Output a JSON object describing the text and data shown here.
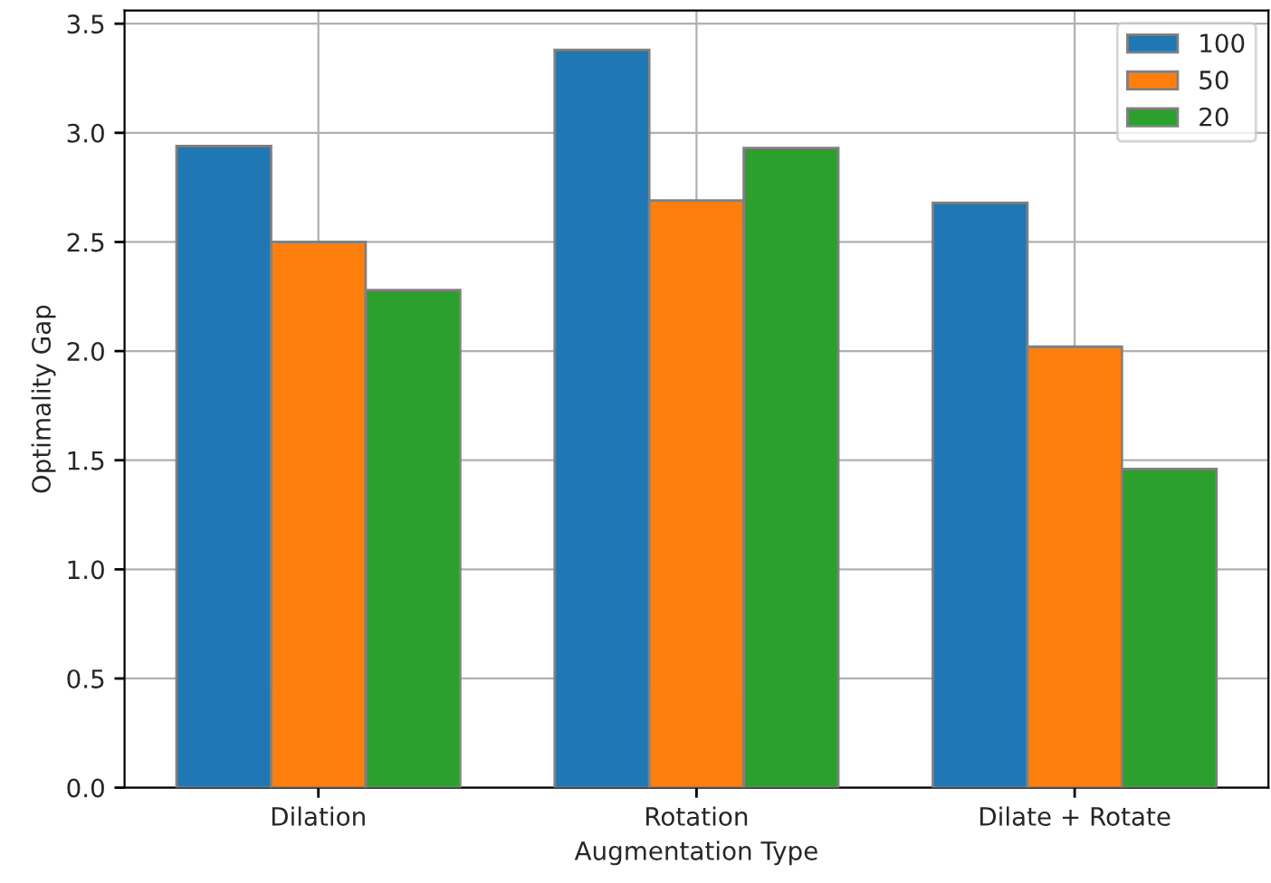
{
  "chart_data": {
    "type": "bar",
    "xlabel": "Augmentation Type",
    "ylabel": "Optimality Gap",
    "categories": [
      "Dilation",
      "Rotation",
      "Dilate + Rotate"
    ],
    "series": [
      {
        "name": "100",
        "color": "#1f77b4",
        "values": [
          2.94,
          3.38,
          2.68
        ]
      },
      {
        "name": "50",
        "color": "#ff7f0e",
        "values": [
          2.5,
          2.69,
          2.02
        ]
      },
      {
        "name": "20",
        "color": "#2ca02c",
        "values": [
          2.28,
          2.93,
          1.46
        ]
      }
    ],
    "ylim": [
      0,
      3.56
    ],
    "yticks": [
      {
        "value": 0,
        "label": "0.0"
      },
      {
        "value": 0.5,
        "label": "0.5"
      },
      {
        "value": 1,
        "label": "1.0"
      },
      {
        "value": 1.5,
        "label": "1.5"
      },
      {
        "value": 2,
        "label": "2.0"
      },
      {
        "value": 2.5,
        "label": "2.5"
      },
      {
        "value": 3,
        "label": "3.0"
      },
      {
        "value": 3.5,
        "label": "3.5"
      }
    ],
    "grid": true,
    "legend": "top right"
  }
}
